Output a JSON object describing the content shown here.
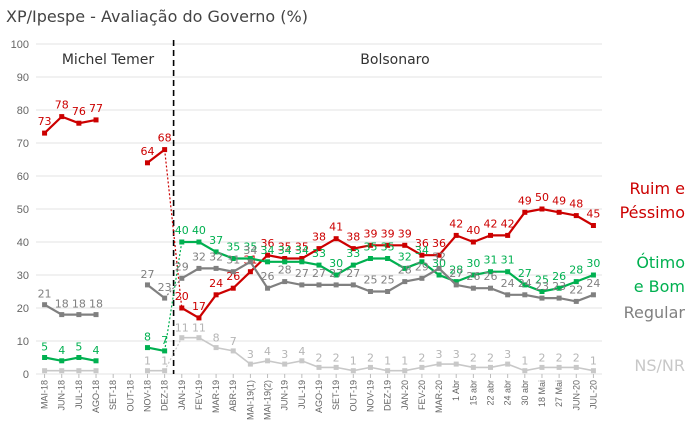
{
  "chart_data": {
    "type": "line",
    "title": "XP/Ipespe - Avaliação do Governo (%)",
    "ylim": [
      0,
      100
    ],
    "yticks": [
      0,
      10,
      20,
      30,
      40,
      50,
      60,
      70,
      80,
      90,
      100
    ],
    "grid": true,
    "periods": [
      "Michel Temer",
      "Bolsonaro"
    ],
    "x": [
      "MAI-18",
      "JUN-18",
      "JUL-18",
      "AGO-18",
      "SET-18",
      "OUT-18",
      "NOV-18",
      "DEZ-18",
      "JAN-19",
      "FEV-19",
      "MAR-19",
      "ABR-19",
      "MAI-19(1)",
      "MAI-19(2)",
      "JUN-19",
      "JUL-19",
      "AGO-19",
      "SET-19",
      "OUT-19",
      "NOV-19",
      "DEZ-19",
      "JAN-20",
      "FEV-20",
      "MAR-20",
      "1 Abr",
      "15 abr",
      "22 abr",
      "24 abr",
      "30 abr",
      "18 Mai",
      "27 Mai",
      "JUN-20",
      "JUL-20"
    ],
    "series": [
      {
        "name": "Ruim e Péssimo",
        "color": "#cc0000",
        "values": [
          73,
          78,
          76,
          77,
          null,
          null,
          64,
          68,
          20,
          17,
          24,
          26,
          31,
          36,
          35,
          35,
          38,
          41,
          38,
          39,
          39,
          39,
          36,
          36,
          42,
          40,
          42,
          42,
          49,
          50,
          49,
          48,
          45
        ],
        "labels": [
          "73",
          "78",
          "76",
          "77",
          null,
          null,
          "64",
          "68",
          "20",
          "17",
          "24",
          "26",
          "31",
          "36",
          "35",
          "35",
          "38",
          "41",
          "38",
          "39",
          "39",
          "39",
          "36",
          "36",
          "42",
          "40",
          "42",
          "42",
          "49",
          "50",
          "49",
          "48",
          "45"
        ]
      },
      {
        "name": "Ótimo e Bom",
        "color": "#00b050",
        "values": [
          5,
          4,
          5,
          4,
          null,
          null,
          8,
          7,
          40,
          40,
          37,
          35,
          35,
          34,
          34,
          34,
          33,
          30,
          33,
          35,
          35,
          32,
          34,
          30,
          28,
          30,
          31,
          31,
          27,
          25,
          26,
          28,
          30
        ],
        "labels": [
          "5",
          "4",
          "5",
          "4",
          null,
          null,
          "8",
          "7",
          "40",
          "40",
          "37",
          "35",
          "35",
          "34",
          "34",
          "34",
          "33",
          "30",
          "33",
          "35",
          "35",
          "32",
          "34",
          "30",
          "28",
          "30",
          "31",
          "31",
          "27",
          "25",
          "26",
          "28",
          "30"
        ]
      },
      {
        "name": "Regular",
        "color": "#808080",
        "values": [
          21,
          18,
          18,
          18,
          null,
          null,
          27,
          23,
          29,
          32,
          32,
          31,
          34,
          26,
          28,
          27,
          27,
          27,
          27,
          25,
          25,
          28,
          29,
          32,
          27,
          26,
          26,
          24,
          24,
          23,
          23,
          22,
          24
        ],
        "labels": [
          "21",
          "18",
          "18",
          "18",
          null,
          null,
          "27",
          "23",
          "29",
          "32",
          "32",
          "31",
          "34",
          "26",
          "28",
          "27",
          "27",
          "27",
          "27",
          "25",
          "25",
          "28",
          "29",
          "32",
          "27",
          "26",
          "26",
          "24",
          "24",
          "23",
          "23",
          "22",
          "24"
        ]
      },
      {
        "name": "NS/NR",
        "color": "#c8c8c8",
        "values": [
          1,
          1,
          1,
          1,
          null,
          null,
          1,
          1,
          11,
          11,
          8,
          7,
          3,
          4,
          3,
          4,
          2,
          2,
          1,
          2,
          1,
          1,
          2,
          3,
          3,
          2,
          2,
          3,
          1,
          2,
          2,
          2,
          1
        ],
        "labels": [
          null,
          null,
          null,
          null,
          null,
          null,
          "1",
          "1",
          "11",
          "11",
          "8",
          "7",
          "3",
          "4",
          "3",
          "4",
          "2",
          "2",
          "1",
          "2",
          "1",
          "1",
          "2",
          "3",
          "3",
          "2",
          "2",
          "3",
          "1",
          "2",
          "2",
          "2",
          "1"
        ]
      }
    ],
    "legend": [
      {
        "lines": [
          "Ruim e",
          "Péssimo"
        ],
        "color": "#cc0000"
      },
      {
        "lines": [
          "Ótimo",
          "e Bom"
        ],
        "color": "#00b050"
      },
      {
        "lines": [
          "Regular"
        ],
        "color": "#808080"
      },
      {
        "lines": [
          "NS/NR"
        ],
        "color": "#c8c8c8"
      }
    ]
  }
}
